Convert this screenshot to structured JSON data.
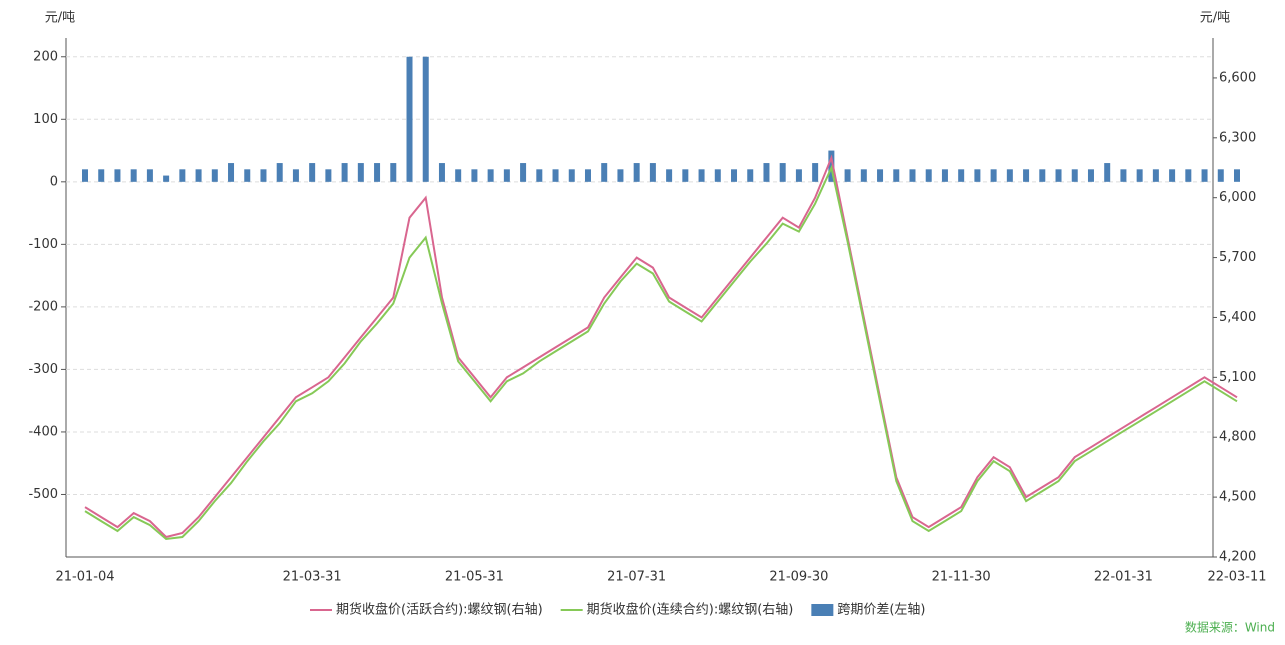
{
  "chart_data": {
    "type": "bar-line",
    "y_label": "元/吨",
    "y2_label": "元/吨",
    "categories": [
      "21-01-04",
      null,
      null,
      null,
      null,
      null,
      null,
      null,
      null,
      null,
      null,
      null,
      null,
      null,
      "21-03-31",
      null,
      null,
      null,
      null,
      null,
      null,
      null,
      null,
      null,
      "21-05-31",
      null,
      null,
      null,
      null,
      null,
      null,
      null,
      null,
      null,
      "21-07-31",
      null,
      null,
      null,
      null,
      null,
      null,
      null,
      null,
      null,
      "21-09-30",
      null,
      null,
      null,
      null,
      null,
      null,
      null,
      null,
      null,
      "21-11-30",
      null,
      null,
      null,
      null,
      null,
      null,
      null,
      null,
      null,
      "22-01-31",
      null,
      null,
      null,
      null,
      null,
      null,
      "22-03-11"
    ],
    "series": [
      {
        "name": "期货收盘价(活跃合约):螺纹钢(右轴)",
        "color": "#d9668f",
        "kind": "line",
        "axis": "y2",
        "values": [
          4450,
          4400,
          4350,
          4420,
          4380,
          4300,
          4320,
          4400,
          4500,
          4600,
          4700,
          4800,
          4900,
          5000,
          5050,
          5100,
          5200,
          5300,
          5400,
          5500,
          5900,
          6000,
          5500,
          5200,
          5100,
          5000,
          5100,
          5150,
          5200,
          5250,
          5300,
          5350,
          5500,
          5600,
          5700,
          5650,
          5500,
          5450,
          5400,
          5500,
          5600,
          5700,
          5800,
          5900,
          5850,
          6000,
          6200,
          5800,
          5400,
          5000,
          4600,
          4400,
          4350,
          4400,
          4450,
          4600,
          4700,
          4650,
          4500,
          4550,
          4600,
          4700,
          4750,
          4800,
          4850,
          4900,
          4950,
          5000,
          5050,
          5100,
          5050,
          5000
        ]
      },
      {
        "name": "期货收盘价(连续合约):螺纹钢(右轴)",
        "color": "#86c957",
        "kind": "line",
        "axis": "y2",
        "values": [
          4430,
          4380,
          4330,
          4400,
          4360,
          4290,
          4300,
          4380,
          4480,
          4570,
          4680,
          4780,
          4870,
          4980,
          5020,
          5080,
          5170,
          5280,
          5370,
          5470,
          5700,
          5800,
          5470,
          5180,
          5080,
          4980,
          5080,
          5120,
          5180,
          5230,
          5280,
          5330,
          5470,
          5580,
          5670,
          5620,
          5480,
          5430,
          5380,
          5480,
          5580,
          5680,
          5770,
          5870,
          5830,
          5970,
          6150,
          5780,
          5380,
          4980,
          4580,
          4380,
          4330,
          4380,
          4430,
          4580,
          4680,
          4630,
          4480,
          4530,
          4580,
          4680,
          4730,
          4780,
          4830,
          4880,
          4930,
          4980,
          5030,
          5080,
          5030,
          4980
        ]
      },
      {
        "name": "跨期价差(左轴)",
        "color": "#4a7fb5",
        "kind": "bar",
        "axis": "y",
        "values": [
          20,
          20,
          20,
          20,
          20,
          10,
          20,
          20,
          20,
          30,
          20,
          20,
          30,
          20,
          30,
          20,
          30,
          30,
          30,
          30,
          200,
          200,
          30,
          20,
          20,
          20,
          20,
          30,
          20,
          20,
          20,
          20,
          30,
          20,
          30,
          30,
          20,
          20,
          20,
          20,
          20,
          20,
          30,
          30,
          20,
          30,
          50,
          20,
          20,
          20,
          20,
          20,
          20,
          20,
          20,
          20,
          20,
          20,
          20,
          20,
          20,
          20,
          20,
          30,
          20,
          20,
          20,
          20,
          20,
          20,
          20,
          20
        ]
      }
    ],
    "ylim": [
      -600,
      230
    ],
    "yticks": [
      -500,
      -400,
      -300,
      -200,
      -100,
      0,
      100,
      200
    ],
    "y2lim": [
      4200,
      6800
    ],
    "y2ticks": [
      {
        "value": 4200,
        "label": "4,200"
      },
      {
        "value": 4500,
        "label": "4,500"
      },
      {
        "value": 4800,
        "label": "4,800"
      },
      {
        "value": 5100,
        "label": "5,100"
      },
      {
        "value": 5400,
        "label": "5,400"
      },
      {
        "value": 5700,
        "label": "5,700"
      },
      {
        "value": 6000,
        "label": "6,000"
      },
      {
        "value": 6300,
        "label": "6,300"
      },
      {
        "value": 6600,
        "label": "6,600"
      }
    ],
    "grid": true,
    "legend": "bottom",
    "source": "数据来源：Wind"
  }
}
